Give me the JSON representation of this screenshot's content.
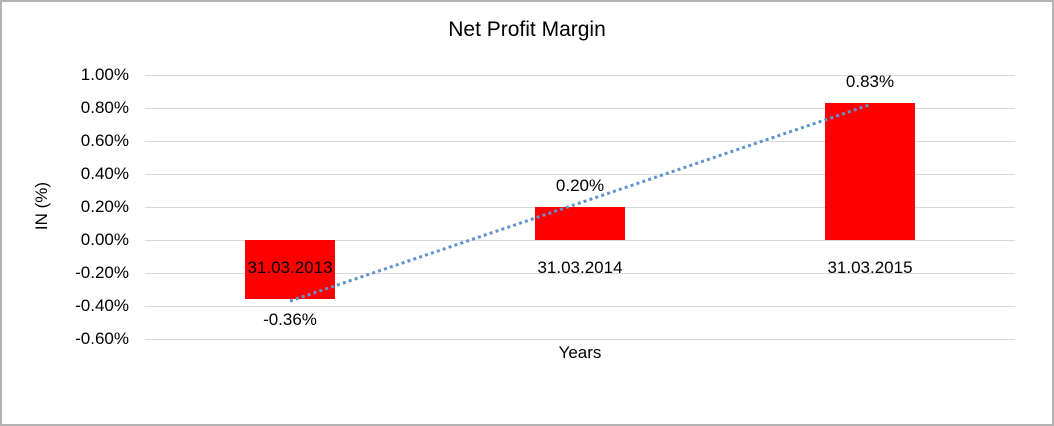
{
  "window": {
    "background": "#ffffff",
    "border_color": "#b3b3b3"
  },
  "chart_data": {
    "type": "bar",
    "title": "Net Profit Margin",
    "xlabel": "Years",
    "ylabel": "IN (%)",
    "categories": [
      "31.03.2013",
      "31.03.2014",
      "31.03.2015"
    ],
    "series": [
      {
        "name": "Net Profit Margin",
        "values": [
          -0.36,
          0.2,
          0.83
        ]
      }
    ],
    "data_labels": [
      "-0.36%",
      "0.20%",
      "0.83%"
    ],
    "yticks": [
      {
        "value": 1.0,
        "label": "1.00%"
      },
      {
        "value": 0.8,
        "label": "0.80%"
      },
      {
        "value": 0.6,
        "label": "0.60%"
      },
      {
        "value": 0.4,
        "label": "0.40%"
      },
      {
        "value": 0.2,
        "label": "0.20%"
      },
      {
        "value": 0.0,
        "label": "0.00%"
      },
      {
        "value": -0.2,
        "label": "-0.20%"
      },
      {
        "value": -0.4,
        "label": "-0.40%"
      },
      {
        "value": -0.6,
        "label": "-0.60%"
      }
    ],
    "ylim": [
      -0.6,
      1.0
    ],
    "grid": "horizontal",
    "gridline_color": "#d9d9d9",
    "bar_color": "#ff0000",
    "text_color": "#000000",
    "legend": "none",
    "trendline": {
      "type": "linear",
      "style": "dotted",
      "color": "#5e93ce",
      "start_value": -0.37,
      "end_value": 0.82
    }
  }
}
